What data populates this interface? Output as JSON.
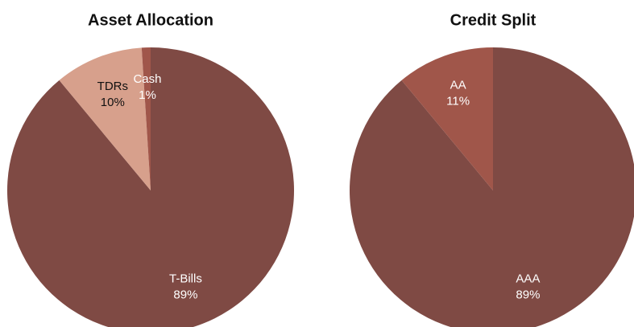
{
  "chart_data": [
    {
      "type": "pie",
      "title": "Asset Allocation",
      "categories": [
        "T-Bills",
        "TDRs",
        "Cash"
      ],
      "values": [
        89,
        10,
        1
      ],
      "value_labels": [
        "89%",
        "10%",
        "1%"
      ],
      "colors": [
        "#7f4a44",
        "#d7a08c",
        "#a0564a"
      ]
    },
    {
      "type": "pie",
      "title": "Credit Split",
      "categories": [
        "AAA",
        "AA"
      ],
      "values": [
        89,
        11
      ],
      "value_labels": [
        "89%",
        "11%"
      ],
      "colors": [
        "#7f4a44",
        "#a0564a"
      ]
    }
  ]
}
